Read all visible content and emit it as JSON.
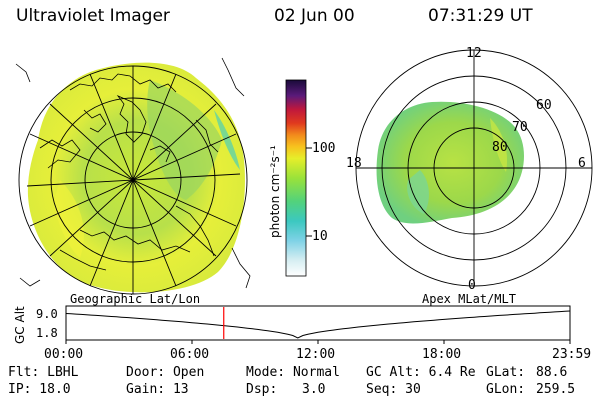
{
  "header": {
    "title": "Ultraviolet Imager",
    "date": "02 Jun 00",
    "time": "07:31:29 UT"
  },
  "colorbar": {
    "unit_label": "photon cm⁻²s⁻¹",
    "tick_100": "100",
    "tick_10": "10"
  },
  "polar_plot": {
    "lat_labels": [
      "80",
      "70",
      "60"
    ],
    "mlt_labels": {
      "top": "12",
      "left": "18",
      "right": "6",
      "bottom": "0"
    }
  },
  "track": {
    "left_label": "Geographic Lat/Lon",
    "right_label": "Apex MLat/MLT",
    "axis_label": "GC Alt",
    "y_top": "9.0",
    "y_bottom": "1.8",
    "x_ticks": [
      "00:00",
      "06:00",
      "12:00",
      "18:00",
      "23:59"
    ],
    "current_time_fraction": 0.313
  },
  "info": {
    "col1": [
      "Flt: LBHL",
      "IP: 18.0"
    ],
    "col2": [
      "Door: Open",
      "Gain: 13"
    ],
    "col3a": [
      "Mode: Normal",
      "Dsp:"
    ],
    "col3b": [
      "",
      "3.0"
    ],
    "col4": [
      "GC Alt: 6.4 Re",
      "Seq: 30"
    ],
    "col5": [
      "GLat:",
      "GLon:"
    ],
    "col6": [
      "88.6",
      "259.5"
    ]
  }
}
